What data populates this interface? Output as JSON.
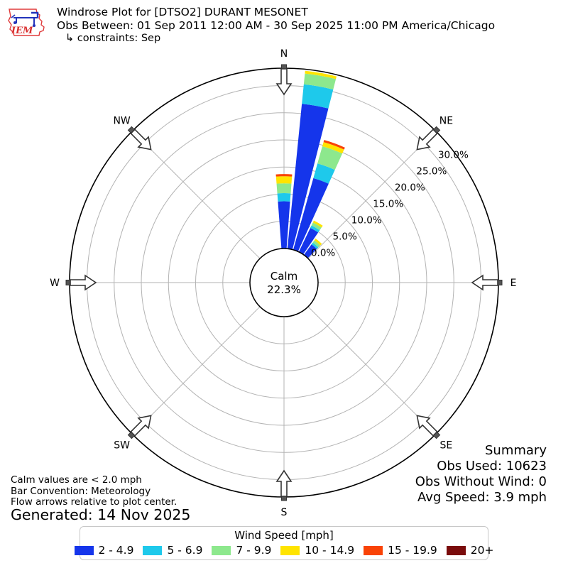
{
  "header": {
    "logo_text": "IEM",
    "title": "Windrose Plot for [DTSO2] DURANT MESONET",
    "subtitle": "Obs Between: 01 Sep 2011 12:00 AM - 30 Sep 2025 11:00 PM America/Chicago",
    "constraints": "↳ constraints: Sep"
  },
  "chart_data": {
    "type": "windrose",
    "units": "mph",
    "compass_labels": [
      "N",
      "NE",
      "E",
      "SE",
      "S",
      "SW",
      "W",
      "NW"
    ],
    "ring_labels": [
      "0.0%",
      "5.0%",
      "10.0%",
      "15.0%",
      "20.0%",
      "25.0%",
      "30.0%"
    ],
    "ring_values_pct": [
      0,
      5,
      10,
      15,
      20,
      25,
      30
    ],
    "rmax_pct": 33.2,
    "ring_label_azimuth_deg": 53,
    "calm": {
      "label": "Calm",
      "pct_label": "22.3%",
      "value_pct": 22.3
    },
    "legend_title": "Wind Speed [mph]",
    "speed_bins": [
      {
        "label": "2 - 4.9",
        "color": "#1535EB"
      },
      {
        "label": "5 - 6.9",
        "color": "#1EC9EB"
      },
      {
        "label": "7 - 9.9",
        "color": "#8DE88D"
      },
      {
        "label": "10 - 14.9",
        "color": "#FFE400"
      },
      {
        "label": "15 - 19.9",
        "color": "#F94306"
      },
      {
        "label": "20+",
        "color": "#7A0C0C"
      }
    ],
    "bar_width_deg": 8.6,
    "bars": [
      {
        "direction_deg": 0,
        "segments_pct": [
          8.7,
          1.5,
          1.8,
          1.3,
          0.4,
          0
        ]
      },
      {
        "direction_deg": 10,
        "segments_pct": [
          26.8,
          3.6,
          2.0,
          0.5,
          0,
          0
        ]
      },
      {
        "direction_deg": 20,
        "segments_pct": [
          13.7,
          2.8,
          3.3,
          0.8,
          0.4,
          0
        ]
      },
      {
        "direction_deg": 30,
        "segments_pct": [
          4.9,
          0.5,
          0.6,
          0.4,
          0,
          0
        ]
      },
      {
        "direction_deg": 40,
        "segments_pct": [
          2.4,
          0.4,
          0.5,
          0.4,
          0,
          0
        ]
      }
    ],
    "grid_color": "#b3b3b3",
    "outer_ring_color": "#000000"
  },
  "summary": {
    "title": "Summary",
    "obs_used": "Obs Used: 10623",
    "obs_without_wind": "Obs Without Wind: 0",
    "avg_speed": "Avg Speed: 3.9 mph"
  },
  "footer": {
    "calm_note": "Calm values are < 2.0 mph",
    "convention_note": "Bar Convention: Meteorology",
    "arrows_note": "Flow arrows relative to plot center.",
    "generated": "Generated: 14 Nov 2025"
  }
}
